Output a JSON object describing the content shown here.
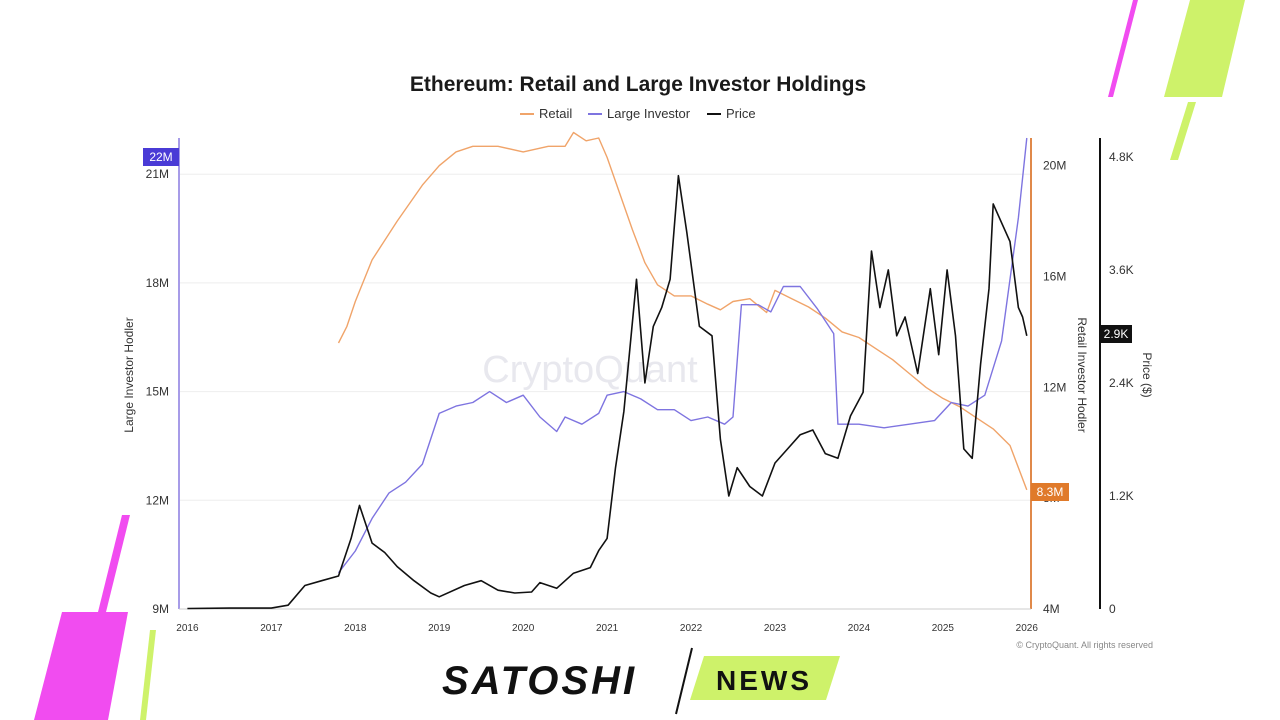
{
  "colors": {
    "retail": "#f0a46a",
    "large_investor": "#7e74e0",
    "price": "#111111",
    "left_axis": "#a79ce8",
    "right_axis": "#e0894a",
    "badge_large": "#4a3bd6",
    "badge_retail": "#e07a2a",
    "badge_price": "#111111",
    "deco_magenta": "#f14cf0",
    "deco_lime": "#cef26a"
  },
  "chart_data": {
    "type": "line",
    "title": "Ethereum: Retail and Large Investor Holdings",
    "watermark": "CryptoQuant",
    "copyright": "© CryptoQuant. All rights reserved",
    "legend": {
      "placement": "top-center",
      "items": [
        {
          "name": "Retail",
          "color": "#f0a46a"
        },
        {
          "name": "Large Investor",
          "color": "#7e74e0"
        },
        {
          "name": "Price",
          "color": "#111111"
        }
      ]
    },
    "x_axis": {
      "min": 2015.9,
      "max": 2026.05,
      "ticks": [
        2016,
        2017,
        2018,
        2019,
        2020,
        2021,
        2022,
        2023,
        2024,
        2025,
        2026
      ],
      "tick_labels": [
        "2016",
        "2017",
        "2018",
        "2019",
        "2020",
        "2021",
        "2022",
        "2023",
        "2024",
        "2025",
        "2026"
      ]
    },
    "y_left": {
      "label": "Large Investor Hodler",
      "min": 9000000,
      "max": 22000000,
      "ticks": [
        9000000,
        12000000,
        15000000,
        18000000,
        21000000
      ],
      "tick_labels": [
        "9M",
        "12M",
        "15M",
        "18M",
        "21M"
      ],
      "badge": "22M"
    },
    "y_right_retail": {
      "label": "Retail Investor Hodler",
      "min": 4000000,
      "max": 21000000,
      "ticks": [
        4000000,
        8000000,
        12000000,
        16000000,
        20000000
      ],
      "tick_labels": [
        "4M",
        "8M",
        "12M",
        "16M",
        "20M"
      ],
      "badge": "8.3M"
    },
    "y_right_price": {
      "label": "Price ($)",
      "min": 0,
      "max": 5000,
      "ticks": [
        0,
        1200,
        2400,
        3600,
        4800
      ],
      "tick_labels": [
        "0",
        "1.2K",
        "2.4K",
        "3.6K",
        "4.8K"
      ],
      "badge": "2.9K"
    },
    "grid": true,
    "series": [
      {
        "name": "Retail",
        "axis": "retail",
        "x": [
          2017.8,
          2017.9,
          2018.0,
          2018.2,
          2018.5,
          2018.8,
          2019.0,
          2019.2,
          2019.4,
          2019.7,
          2020.0,
          2020.3,
          2020.5,
          2020.6,
          2020.75,
          2020.9,
          2021.0,
          2021.15,
          2021.3,
          2021.45,
          2021.6,
          2021.8,
          2022.0,
          2022.2,
          2022.35,
          2022.5,
          2022.7,
          2022.9,
          2023.0,
          2023.2,
          2023.4,
          2023.6,
          2023.8,
          2024.0,
          2024.2,
          2024.4,
          2024.6,
          2024.8,
          2025.0,
          2025.2,
          2025.4,
          2025.6,
          2025.8,
          2026.0
        ],
        "values": [
          13600000,
          14200000,
          15100000,
          16600000,
          18000000,
          19300000,
          20000000,
          20500000,
          20700000,
          20700000,
          20500000,
          20700000,
          20700000,
          21200000,
          20900000,
          21000000,
          20300000,
          19000000,
          17700000,
          16500000,
          15700000,
          15300000,
          15300000,
          15000000,
          14800000,
          15100000,
          15200000,
          14700000,
          15500000,
          15200000,
          14900000,
          14500000,
          14000000,
          13800000,
          13400000,
          13000000,
          12500000,
          12000000,
          11600000,
          11300000,
          10900000,
          10500000,
          9900000,
          8300000
        ]
      },
      {
        "name": "Large Investor",
        "axis": "left",
        "x": [
          2017.8,
          2018.0,
          2018.2,
          2018.4,
          2018.6,
          2018.8,
          2019.0,
          2019.2,
          2019.4,
          2019.6,
          2019.8,
          2020.0,
          2020.2,
          2020.4,
          2020.5,
          2020.7,
          2020.9,
          2021.0,
          2021.2,
          2021.4,
          2021.6,
          2021.8,
          2022.0,
          2022.2,
          2022.4,
          2022.5,
          2022.6,
          2022.8,
          2022.95,
          2023.1,
          2023.3,
          2023.5,
          2023.7,
          2023.75,
          2024.0,
          2024.3,
          2024.6,
          2024.9,
          2025.1,
          2025.3,
          2025.5,
          2025.7,
          2025.9,
          2026.0
        ],
        "values": [
          10000000,
          10600000,
          11500000,
          12200000,
          12500000,
          13000000,
          14400000,
          14600000,
          14700000,
          15000000,
          14700000,
          14900000,
          14300000,
          13900000,
          14300000,
          14100000,
          14400000,
          14900000,
          15000000,
          14800000,
          14500000,
          14500000,
          14200000,
          14300000,
          14100000,
          14300000,
          17400000,
          17400000,
          17200000,
          17900000,
          17900000,
          17300000,
          16600000,
          14100000,
          14100000,
          14000000,
          14100000,
          14200000,
          14700000,
          14600000,
          14900000,
          16400000,
          19800000,
          22000000
        ]
      },
      {
        "name": "Price",
        "axis": "price",
        "x": [
          2016.0,
          2016.5,
          2017.0,
          2017.2,
          2017.4,
          2017.6,
          2017.8,
          2017.95,
          2018.05,
          2018.2,
          2018.35,
          2018.5,
          2018.7,
          2018.9,
          2019.0,
          2019.3,
          2019.5,
          2019.7,
          2019.9,
          2020.1,
          2020.2,
          2020.4,
          2020.6,
          2020.8,
          2020.9,
          2021.0,
          2021.1,
          2021.2,
          2021.35,
          2021.45,
          2021.55,
          2021.65,
          2021.75,
          2021.85,
          2021.95,
          2022.1,
          2022.25,
          2022.35,
          2022.45,
          2022.55,
          2022.7,
          2022.85,
          2023.0,
          2023.15,
          2023.3,
          2023.45,
          2023.6,
          2023.75,
          2023.9,
          2024.05,
          2024.15,
          2024.25,
          2024.35,
          2024.45,
          2024.55,
          2024.7,
          2024.85,
          2024.95,
          2025.05,
          2025.15,
          2025.25,
          2025.35,
          2025.45,
          2025.55,
          2025.6,
          2025.7,
          2025.8,
          2025.9,
          2025.95,
          2026.0
        ],
        "values": [
          5,
          10,
          10,
          40,
          250,
          300,
          350,
          750,
          1100,
          700,
          600,
          450,
          300,
          170,
          130,
          250,
          300,
          200,
          170,
          180,
          280,
          220,
          380,
          440,
          620,
          750,
          1500,
          2100,
          3500,
          2400,
          3000,
          3200,
          3500,
          4600,
          4000,
          3000,
          2900,
          1800,
          1200,
          1500,
          1300,
          1200,
          1550,
          1700,
          1850,
          1900,
          1650,
          1600,
          2050,
          2300,
          3800,
          3200,
          3600,
          2900,
          3100,
          2500,
          3400,
          2700,
          3600,
          2900,
          1700,
          1600,
          2600,
          3400,
          4300,
          4100,
          3900,
          3200,
          3100,
          2900
        ]
      }
    ]
  },
  "branding": {
    "logo_primary": "SATOSHI",
    "logo_secondary": "NEWS"
  }
}
